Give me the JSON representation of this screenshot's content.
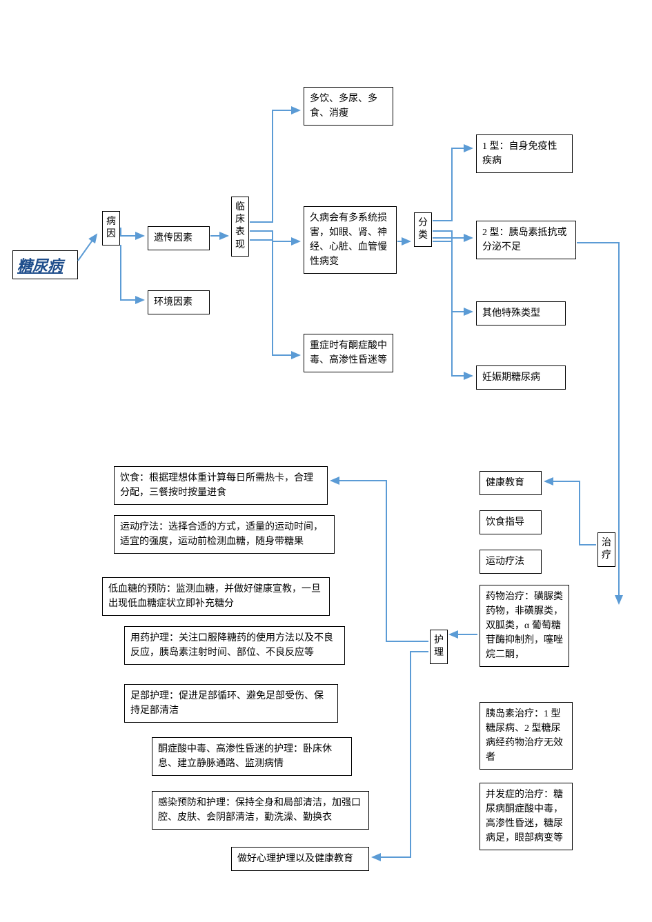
{
  "root": {
    "label": "糖尿病"
  },
  "cause": {
    "label": "病\n因",
    "items": [
      "遗传因素",
      "环境因素"
    ]
  },
  "clinical": {
    "label": "临\n床\n表\n现",
    "items": [
      "多饮、多尿、多食、消瘦",
      "久病会有多系统损害，如眼、肾、神经、心脏、血管慢性病变",
      "重症时有酮症酸中毒、高渗性昏迷等"
    ]
  },
  "types": {
    "label": "分\n类",
    "items": [
      "1 型：自身免疫性疾病",
      "2 型：胰岛素抵抗或分泌不足",
      "其他特殊类型",
      "妊娠期糖尿病"
    ]
  },
  "treatment": {
    "label": "治\n疗",
    "items": [
      "健康教育",
      "饮食指导",
      "运动疗法",
      "药物治疗：磺脲类药物，非磺脲类，双胍类，α 葡萄糖苷酶抑制剂，噻唑烷二酮，",
      "胰岛素治疗：1 型糖尿病、2 型糖尿病经药物治疗无效者",
      "并发症的治疗：糖尿病酮症酸中毒，高渗性昏迷，糖尿病足，眼部病变等"
    ]
  },
  "nursing": {
    "label": "护\n理",
    "items": [
      "饮食：根据理想体重计算每日所需热卡，合理分配，三餐按时按量进食",
      "运动疗法：选择合适的方式，适量的运动时间，适宜的强度，运动前检测血糖，随身带糖果",
      "低血糖的预防：监测血糖，并做好健康宣教，一旦出现低血糖症状立即补充糖分",
      "用药护理：关注口服降糖药的使用方法以及不良反应，胰岛素注射时间、部位、不良反应等",
      "足部护理：促进足部循环、避免足部受伤、保持足部清洁",
      "酮症酸中毒、高渗性昏迷的护理：卧床休息、建立静脉通路、监测病情",
      "感染预防和护理：保持全身和局部清洁，加强口腔、皮肤、会阴部清洁，勤洗澡、勤换衣",
      "做好心理护理以及健康教育"
    ]
  },
  "style": {
    "arrow_color": "#5b9bd5",
    "arrow_width": 2,
    "box_border": "#000000",
    "background": "#ffffff",
    "root_text_color": "#1e4d8b"
  }
}
